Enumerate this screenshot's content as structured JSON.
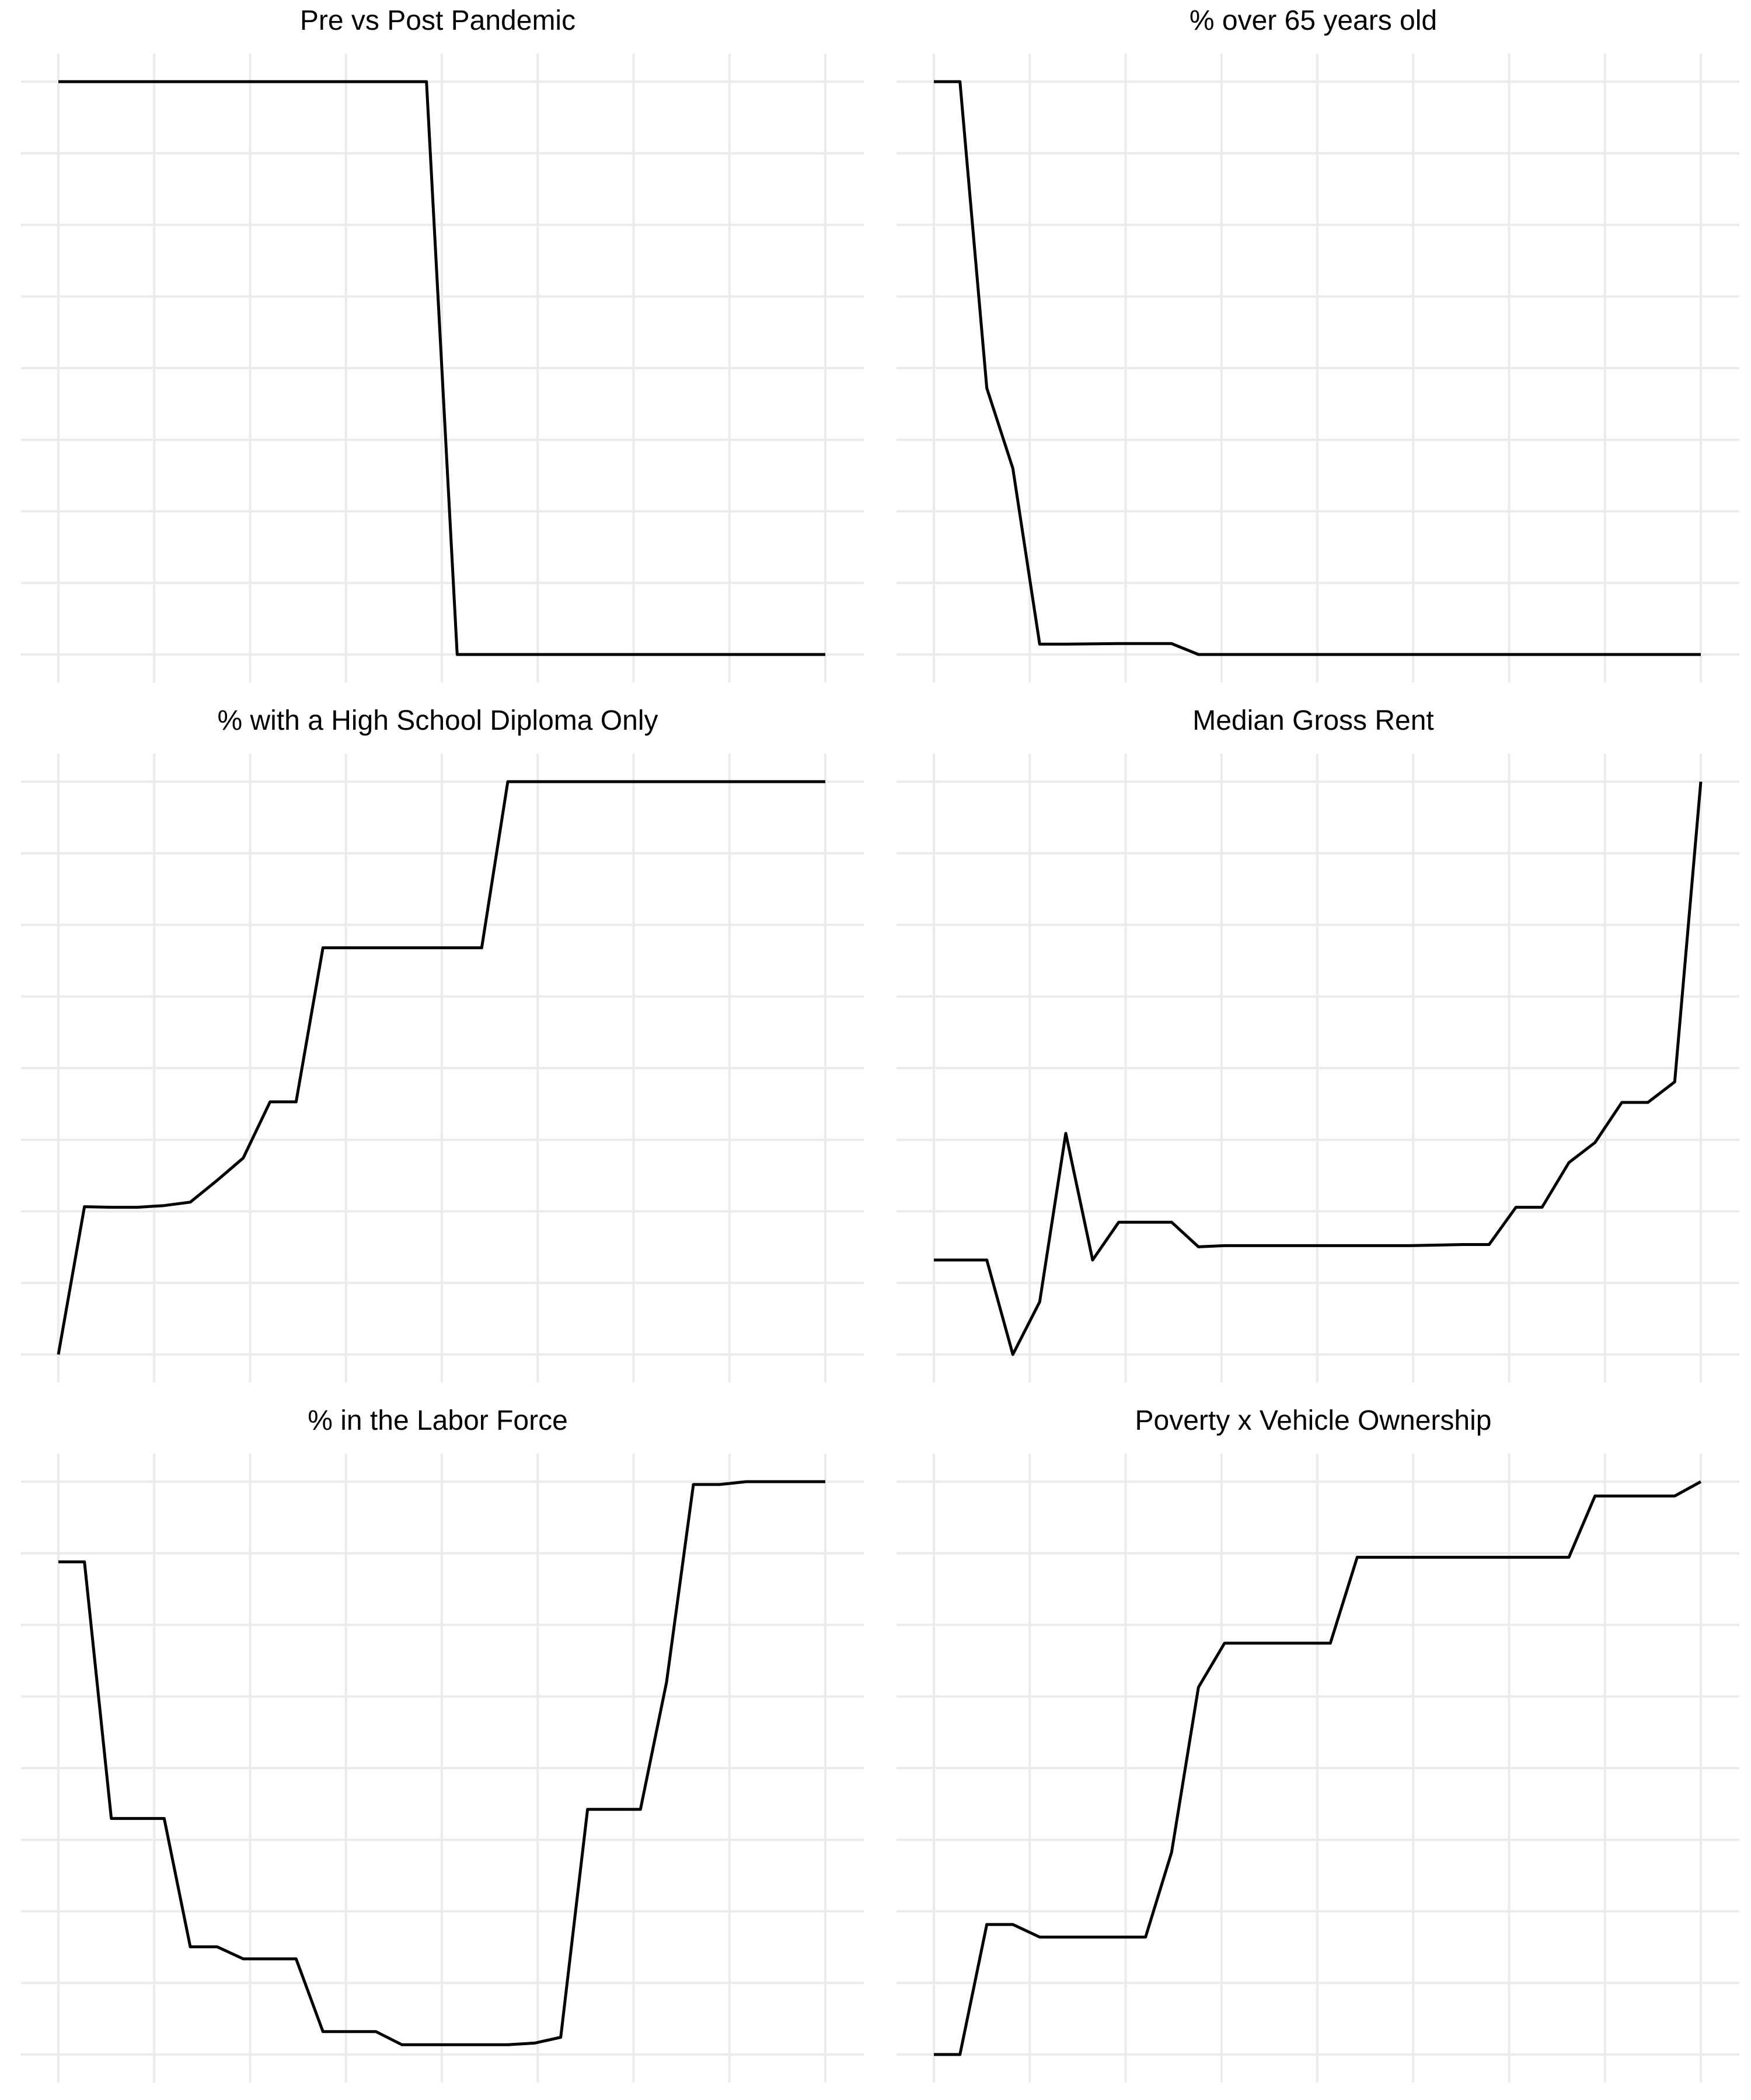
{
  "colors": {
    "line": "#000000",
    "grid": "#ebebeb",
    "background": "#ffffff"
  },
  "chart_data": [
    {
      "type": "line",
      "title": "Pre vs Post Pandemic",
      "xlabel": "",
      "ylabel": "",
      "grid": true,
      "xlim": [
        0,
        1
      ],
      "ylim": [
        0,
        1
      ],
      "series": [
        {
          "x": [
            0.0,
            0.48,
            0.52,
            1.0
          ],
          "y": [
            1.0,
            1.0,
            0.0,
            0.0
          ]
        }
      ]
    },
    {
      "type": "line",
      "title": "% over 65 years old",
      "xlabel": "",
      "ylabel": "",
      "grid": true,
      "xlim": [
        0,
        1
      ],
      "ylim": [
        0,
        1
      ],
      "series": [
        {
          "x": [
            0.0,
            0.034,
            0.069,
            0.103,
            0.138,
            0.172,
            0.241,
            0.31,
            0.345,
            1.0
          ],
          "y": [
            1.0,
            1.0,
            0.465,
            0.325,
            0.018,
            0.018,
            0.019,
            0.019,
            0.0,
            0.0
          ]
        }
      ]
    },
    {
      "type": "line",
      "title": "% with a High School Diploma Only",
      "xlabel": "",
      "ylabel": "",
      "grid": true,
      "xlim": [
        0,
        1
      ],
      "ylim": [
        0,
        1
      ],
      "series": [
        {
          "x": [
            0.0,
            0.034,
            0.069,
            0.103,
            0.138,
            0.172,
            0.207,
            0.241,
            0.276,
            0.31,
            0.345,
            0.517,
            0.552,
            0.586,
            1.0
          ],
          "y": [
            0.0,
            0.258,
            0.257,
            0.257,
            0.26,
            0.266,
            0.304,
            0.343,
            0.441,
            0.441,
            0.71,
            0.71,
            0.71,
            1.0,
            1.0
          ]
        }
      ]
    },
    {
      "type": "line",
      "title": "Median Gross Rent",
      "xlabel": "",
      "ylabel": "",
      "grid": true,
      "xlim": [
        0,
        1
      ],
      "ylim": [
        0,
        1
      ],
      "series": [
        {
          "x": [
            0.0,
            0.034,
            0.069,
            0.103,
            0.138,
            0.172,
            0.207,
            0.241,
            0.276,
            0.31,
            0.345,
            0.379,
            0.448,
            0.552,
            0.621,
            0.69,
            0.724,
            0.759,
            0.793,
            0.828,
            0.862,
            0.897,
            0.931,
            0.966,
            1.0
          ],
          "y": [
            0.165,
            0.165,
            0.165,
            0.0,
            0.092,
            0.386,
            0.165,
            0.231,
            0.231,
            0.231,
            0.188,
            0.19,
            0.19,
            0.19,
            0.19,
            0.192,
            0.192,
            0.257,
            0.257,
            0.335,
            0.37,
            0.44,
            0.44,
            0.476,
            1.0
          ]
        }
      ]
    },
    {
      "type": "line",
      "title": "% in the Labor Force",
      "xlabel": "",
      "ylabel": "",
      "grid": true,
      "xlim": [
        0,
        1
      ],
      "ylim": [
        0,
        1
      ],
      "series": [
        {
          "x": [
            0.0,
            0.034,
            0.069,
            0.103,
            0.138,
            0.172,
            0.207,
            0.241,
            0.276,
            0.31,
            0.345,
            0.379,
            0.414,
            0.448,
            0.483,
            0.517,
            0.552,
            0.586,
            0.621,
            0.655,
            0.69,
            0.724,
            0.759,
            0.793,
            0.828,
            0.862,
            0.897,
            0.931,
            0.966,
            1.0
          ],
          "y": [
            0.86,
            0.86,
            0.412,
            0.412,
            0.412,
            0.188,
            0.188,
            0.167,
            0.167,
            0.167,
            0.04,
            0.04,
            0.04,
            0.017,
            0.017,
            0.017,
            0.017,
            0.017,
            0.02,
            0.03,
            0.428,
            0.428,
            0.428,
            0.65,
            0.995,
            0.995,
            1.0,
            1.0,
            1.0,
            1.0
          ]
        }
      ]
    },
    {
      "type": "line",
      "title": "Poverty x Vehicle Ownership",
      "xlabel": "",
      "ylabel": "",
      "grid": true,
      "xlim": [
        0,
        1
      ],
      "ylim": [
        0,
        1
      ],
      "series": [
        {
          "x": [
            0.0,
            0.034,
            0.069,
            0.103,
            0.138,
            0.172,
            0.207,
            0.241,
            0.276,
            0.31,
            0.345,
            0.379,
            0.414,
            0.448,
            0.483,
            0.517,
            0.552,
            0.586,
            0.621,
            0.655,
            0.69,
            0.724,
            0.759,
            0.793,
            0.828,
            0.862,
            0.897,
            0.931,
            0.966,
            1.0
          ],
          "y": [
            0.0,
            0.0,
            0.227,
            0.227,
            0.205,
            0.205,
            0.205,
            0.205,
            0.205,
            0.353,
            0.641,
            0.718,
            0.718,
            0.718,
            0.718,
            0.718,
            0.868,
            0.868,
            0.868,
            0.868,
            0.868,
            0.868,
            0.868,
            0.868,
            0.868,
            0.975,
            0.975,
            0.975,
            0.975,
            1.0
          ]
        }
      ]
    }
  ]
}
